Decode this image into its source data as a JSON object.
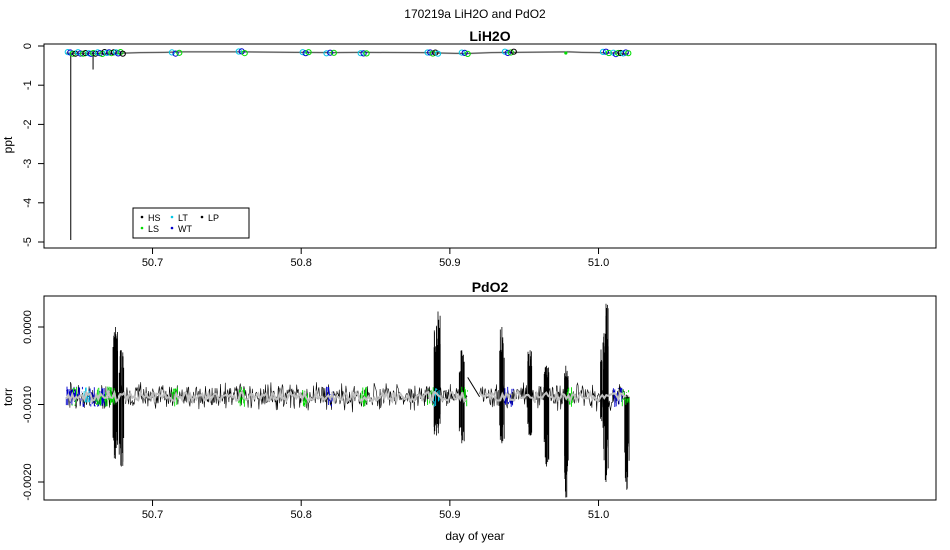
{
  "figure": {
    "suptitle": "170219a   LiH2O and PdO2",
    "xlabel": "day of year"
  },
  "chart_data": [
    {
      "type": "line",
      "title": "LiH2O",
      "ylabel": "ppt",
      "xlim": [
        50.627,
        51.227
      ],
      "ylim": [
        -5.0,
        0.0
      ],
      "x_ticks": [
        50.7,
        50.8,
        50.9,
        51.0
      ],
      "x_tick_labels": [
        "50.7",
        "50.8",
        "50.9",
        "51.0"
      ],
      "y_ticks": [
        0,
        -1,
        -2,
        -3,
        -4,
        -5
      ],
      "y_tick_labels": [
        "0",
        "-1",
        "-2",
        "-3",
        "-4",
        "-5"
      ],
      "legend": {
        "placement": "bottom-left",
        "entries": [
          {
            "label": "HS",
            "color": "#000000"
          },
          {
            "label": "LT",
            "color": "#00c8e8"
          },
          {
            "label": "LP",
            "color": "#000000"
          },
          {
            "label": "LS",
            "color": "#00dd00"
          },
          {
            "label": "WT",
            "color": "#0000cc"
          }
        ]
      },
      "series": [
        {
          "name": "",
          "color": "#bbbbbb",
          "x": [
            50.642,
            50.66,
            50.68,
            50.72,
            50.76,
            50.8,
            50.82,
            50.84,
            50.88,
            50.91,
            50.94,
            50.98,
            51.0,
            51.02
          ],
          "y": [
            -0.18,
            -0.19,
            -0.18,
            -0.15,
            -0.15,
            -0.16,
            -0.17,
            -0.16,
            -0.17,
            -0.19,
            -0.16,
            -0.15,
            -0.17,
            -0.19
          ]
        },
        {
          "name": "",
          "color": "#000000",
          "spikes": [
            {
              "x": 50.645,
              "y0": -0.18,
              "y1": -4.95
            },
            {
              "x": 50.66,
              "y0": -0.18,
              "y1": -0.6
            }
          ]
        }
      ],
      "marker_clusters": [
        {
          "x": [
            50.643,
            50.655
          ],
          "y": -0.18
        },
        {
          "x": [
            50.657,
            50.68
          ],
          "y": -0.18
        },
        {
          "x": [
            50.713,
            50.718
          ],
          "y": -0.17
        },
        {
          "x": [
            50.758,
            50.762
          ],
          "y": -0.16
        },
        {
          "x": [
            50.801,
            50.805
          ],
          "y": -0.16
        },
        {
          "x": [
            50.817,
            50.822
          ],
          "y": -0.17
        },
        {
          "x": [
            50.84,
            50.844
          ],
          "y": -0.17
        },
        {
          "x": [
            50.885,
            50.892
          ],
          "y": -0.18
        },
        {
          "x": [
            50.908,
            50.912
          ],
          "y": -0.19
        },
        {
          "x": [
            50.937,
            50.943
          ],
          "y": -0.17
        },
        {
          "x": [
            51.003,
            51.007
          ],
          "y": -0.17
        },
        {
          "x": [
            51.01,
            51.02
          ],
          "y": -0.19
        }
      ],
      "isolated_markers": [
        {
          "x": 50.978,
          "y": -0.18,
          "color": "#00dd00"
        }
      ]
    },
    {
      "type": "line",
      "title": "PdO2",
      "ylabel": "torr",
      "xlim": [
        50.627,
        51.227
      ],
      "ylim": [
        -0.0022,
        0.0005
      ],
      "x_ticks": [
        50.7,
        50.8,
        50.9,
        51.0
      ],
      "x_tick_labels": [
        "50.7",
        "50.8",
        "50.9",
        "51.0"
      ],
      "y_ticks": [
        0.0,
        -0.001,
        -0.002
      ],
      "y_tick_labels": [
        "0.0000",
        "-0.0010",
        "-0.0020"
      ],
      "baseline": -0.0009,
      "series": [
        {
          "name": "",
          "color": "#000000",
          "x_range": [
            50.642,
            51.02
          ],
          "mean": -0.0009,
          "noise": 0.00012
        },
        {
          "name": "",
          "color": "#c0c0c0",
          "x_range": [
            50.642,
            51.02
          ],
          "mean": -0.0009,
          "noise": 2e-05
        }
      ],
      "bursts": [
        {
          "x": 50.675,
          "min": -0.0017,
          "max": 0.0
        },
        {
          "x": 50.679,
          "min": -0.0018,
          "max": -0.0003
        },
        {
          "x": 50.891,
          "min": -0.0014,
          "max": 0.0
        },
        {
          "x": 50.892,
          "min": -0.0013,
          "max": 0.0002
        },
        {
          "x": 50.908,
          "min": -0.0015,
          "max": -0.0003
        },
        {
          "x": 50.935,
          "min": -0.0015,
          "max": 0.0
        },
        {
          "x": 50.954,
          "min": -0.0014,
          "max": -0.0003
        },
        {
          "x": 50.965,
          "min": -0.0018,
          "max": -0.0005
        },
        {
          "x": 50.978,
          "min": -0.0022,
          "max": -0.0005
        },
        {
          "x": 51.003,
          "min": -0.0013,
          "max": -0.0002
        },
        {
          "x": 51.005,
          "min": -0.002,
          "max": 0.0003
        },
        {
          "x": 51.019,
          "min": -0.0021,
          "max": -0.0009
        }
      ],
      "gap_link": {
        "x0": 50.912,
        "y0": -0.00065,
        "x1": 50.92,
        "y1": -0.0009
      },
      "color_segments": [
        {
          "x": [
            50.642,
            50.654
          ],
          "color": "#0000cc"
        },
        {
          "x": [
            50.646,
            50.649
          ],
          "color": "#00dd00"
        },
        {
          "x": [
            50.654,
            50.658
          ],
          "color": "#00c8e8"
        },
        {
          "x": [
            50.658,
            50.668
          ],
          "color": "#0000cc"
        },
        {
          "x": [
            50.662,
            50.666
          ],
          "color": "#00dd00"
        },
        {
          "x": [
            50.668,
            50.676
          ],
          "color": "#00dd00"
        },
        {
          "x": [
            50.713,
            50.717
          ],
          "color": "#00dd00"
        },
        {
          "x": [
            50.758,
            50.762
          ],
          "color": "#00dd00"
        },
        {
          "x": [
            50.801,
            50.805
          ],
          "color": "#00dd00"
        },
        {
          "x": [
            50.817,
            50.822
          ],
          "color": "#0000cc"
        },
        {
          "x": [
            50.84,
            50.844
          ],
          "color": "#00dd00"
        },
        {
          "x": [
            50.885,
            50.889
          ],
          "color": "#00dd00"
        },
        {
          "x": [
            50.889,
            50.893
          ],
          "color": "#00c8e8"
        },
        {
          "x": [
            50.908,
            50.912
          ],
          "color": "#00dd00"
        },
        {
          "x": [
            50.937,
            50.943
          ],
          "color": "#0000cc"
        },
        {
          "x": [
            50.979,
            50.983
          ],
          "color": "#00dd00"
        },
        {
          "x": [
            51.01,
            51.016
          ],
          "color": "#0000cc"
        },
        {
          "x": [
            51.016,
            51.021
          ],
          "color": "#00dd00"
        }
      ]
    }
  ]
}
